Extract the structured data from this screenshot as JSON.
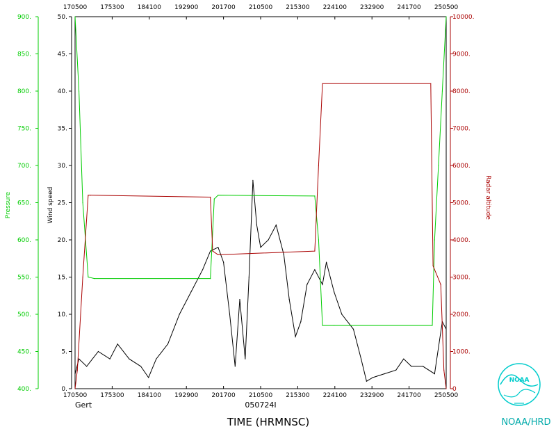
{
  "chart_data": {
    "type": "line",
    "storm_name": "Gert",
    "flight_id": "050724I",
    "xlabel": "TIME (HRMNSC)",
    "credit": "NOAA/HRD",
    "logo_text": "NOAA",
    "x_tick_labels": [
      "170500",
      "175300",
      "184100",
      "192900",
      "201700",
      "210500",
      "215300",
      "224100",
      "232900",
      "241700",
      "250500"
    ],
    "x_tick_times": [
      "17:05:00",
      "17:53:00",
      "18:41:00",
      "19:29:00",
      "20:17:00",
      "21:05:00",
      "21:53:00",
      "22:41:00",
      "23:29:00",
      "24:17:00",
      "25:05:00"
    ],
    "axes": {
      "wind": {
        "label": "Wind speed",
        "ylim": [
          0,
          50
        ],
        "ticks": [
          0,
          5,
          10,
          15,
          20,
          25,
          30,
          35,
          40,
          45,
          50
        ],
        "tick_labels": [
          "0.",
          "5.",
          "10.",
          "15.",
          "20.",
          "25.",
          "30.",
          "35.",
          "40.",
          "45.",
          "50."
        ],
        "color": "#000000"
      },
      "pressure": {
        "label": "Pressure",
        "ylim": [
          400,
          900
        ],
        "ticks": [
          400,
          450,
          500,
          550,
          600,
          650,
          700,
          750,
          800,
          850,
          900
        ],
        "tick_labels": [
          "400.",
          "450.",
          "500.",
          "550.",
          "600.",
          "650.",
          "700.",
          "750.",
          "800.",
          "850.",
          "900."
        ],
        "color": "#00cc00"
      },
      "altitude": {
        "label": "Radar altitude",
        "ylim": [
          0,
          10000
        ],
        "ticks": [
          0,
          1000,
          2000,
          3000,
          4000,
          5000,
          6000,
          7000,
          8000,
          9000,
          10000
        ],
        "tick_labels": [
          "0",
          "1000.",
          "2000.",
          "3000.",
          "4000.",
          "5000.",
          "6000.",
          "7000.",
          "8000.",
          "9000.",
          "10000."
        ],
        "color": "#aa0000"
      }
    },
    "series": [
      {
        "name": "Wind speed",
        "axis": "wind",
        "color": "#000000",
        "points": [
          [
            "17:05:00",
            2
          ],
          [
            "17:10:00",
            4
          ],
          [
            "17:20:00",
            3
          ],
          [
            "17:35:00",
            5
          ],
          [
            "17:50:00",
            4
          ],
          [
            "18:00:00",
            6
          ],
          [
            "18:15:00",
            4
          ],
          [
            "18:30:00",
            3
          ],
          [
            "18:40:00",
            1.5
          ],
          [
            "18:50:00",
            4
          ],
          [
            "19:05:00",
            6
          ],
          [
            "19:20:00",
            10
          ],
          [
            "19:35:00",
            13
          ],
          [
            "19:50:00",
            16
          ],
          [
            "20:00:00",
            18.5
          ],
          [
            "20:10:00",
            19
          ],
          [
            "20:17:00",
            17
          ],
          [
            "20:25:00",
            10
          ],
          [
            "20:32:00",
            3
          ],
          [
            "20:38:00",
            12
          ],
          [
            "20:45:00",
            4
          ],
          [
            "20:50:00",
            15
          ],
          [
            "20:55:00",
            28
          ],
          [
            "21:00:00",
            22
          ],
          [
            "21:05:00",
            19
          ],
          [
            "21:15:00",
            20
          ],
          [
            "21:25:00",
            22
          ],
          [
            "21:35:00",
            18
          ],
          [
            "21:42:00",
            12
          ],
          [
            "21:50:00",
            7
          ],
          [
            "21:57:00",
            9
          ],
          [
            "22:05:00",
            14
          ],
          [
            "22:15:00",
            16
          ],
          [
            "22:25:00",
            14
          ],
          [
            "22:30:00",
            17
          ],
          [
            "22:40:00",
            13
          ],
          [
            "22:50:00",
            10
          ],
          [
            "23:05:00",
            8
          ],
          [
            "23:15:00",
            4
          ],
          [
            "23:22:00",
            1
          ],
          [
            "23:30:00",
            1.5
          ],
          [
            "23:45:00",
            2
          ],
          [
            "24:00:00",
            2.5
          ],
          [
            "24:10:00",
            4
          ],
          [
            "24:20:00",
            3
          ],
          [
            "24:35:00",
            3
          ],
          [
            "24:50:00",
            2
          ],
          [
            "25:00:00",
            9
          ],
          [
            "25:05:00",
            8
          ]
        ]
      },
      {
        "name": "Pressure",
        "axis": "pressure",
        "color": "#00cc00",
        "points": [
          [
            "17:05:00",
            900
          ],
          [
            "17:10:00",
            800
          ],
          [
            "17:15:00",
            650
          ],
          [
            "17:22:00",
            550
          ],
          [
            "17:30:00",
            548
          ],
          [
            "20:00:00",
            548
          ],
          [
            "20:05:00",
            655
          ],
          [
            "20:10:00",
            660
          ],
          [
            "22:15:00",
            659
          ],
          [
            "22:20:00",
            600
          ],
          [
            "22:25:00",
            485
          ],
          [
            "22:40:00",
            485
          ],
          [
            "24:47:00",
            485
          ],
          [
            "24:50:00",
            600
          ],
          [
            "24:55:00",
            700
          ],
          [
            "25:00:00",
            800
          ],
          [
            "25:05:00",
            900
          ]
        ]
      },
      {
        "name": "Radar altitude",
        "axis": "altitude",
        "color": "#aa0000",
        "points": [
          [
            "17:05:00",
            0
          ],
          [
            "17:08:00",
            500
          ],
          [
            "17:15:00",
            3000
          ],
          [
            "17:22:00",
            5200
          ],
          [
            "17:25:00",
            5200
          ],
          [
            "20:00:00",
            5150
          ],
          [
            "20:03:00",
            3700
          ],
          [
            "20:10:00",
            3600
          ],
          [
            "22:15:00",
            3700
          ],
          [
            "22:20:00",
            6000
          ],
          [
            "22:25:00",
            8200
          ],
          [
            "24:45:00",
            8200
          ],
          [
            "24:48:00",
            3300
          ],
          [
            "24:58:00",
            2800
          ],
          [
            "25:02:00",
            500
          ],
          [
            "25:05:00",
            0
          ]
        ]
      }
    ]
  },
  "colors": {
    "wind": "#000000",
    "pressure": "#00cc00",
    "altitude": "#aa0000",
    "logo": "#00cccc",
    "credit": "#00aaaa"
  },
  "icons": {
    "logo": "noaa-logo-icon"
  }
}
